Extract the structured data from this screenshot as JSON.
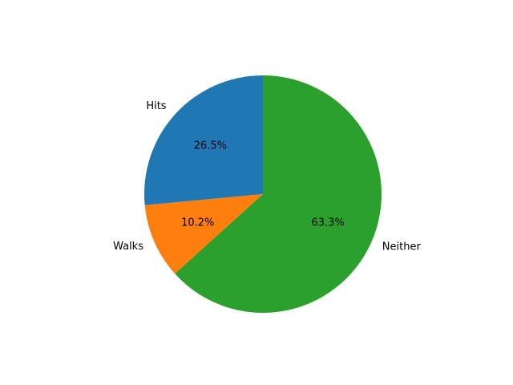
{
  "chart_data": {
    "type": "pie",
    "title": "",
    "slices": [
      {
        "label": "Hits",
        "value": 26.5,
        "pct_label": "26.5%",
        "color": "#1f77b4"
      },
      {
        "label": "Walks",
        "value": 10.2,
        "pct_label": "10.2%",
        "color": "#ff7f0e"
      },
      {
        "label": "Neither",
        "value": 63.3,
        "pct_label": "63.3%",
        "color": "#2ca02c"
      }
    ],
    "start_angle_deg": 90,
    "direction": "counterclockwise",
    "legend": "none",
    "grid": false
  }
}
